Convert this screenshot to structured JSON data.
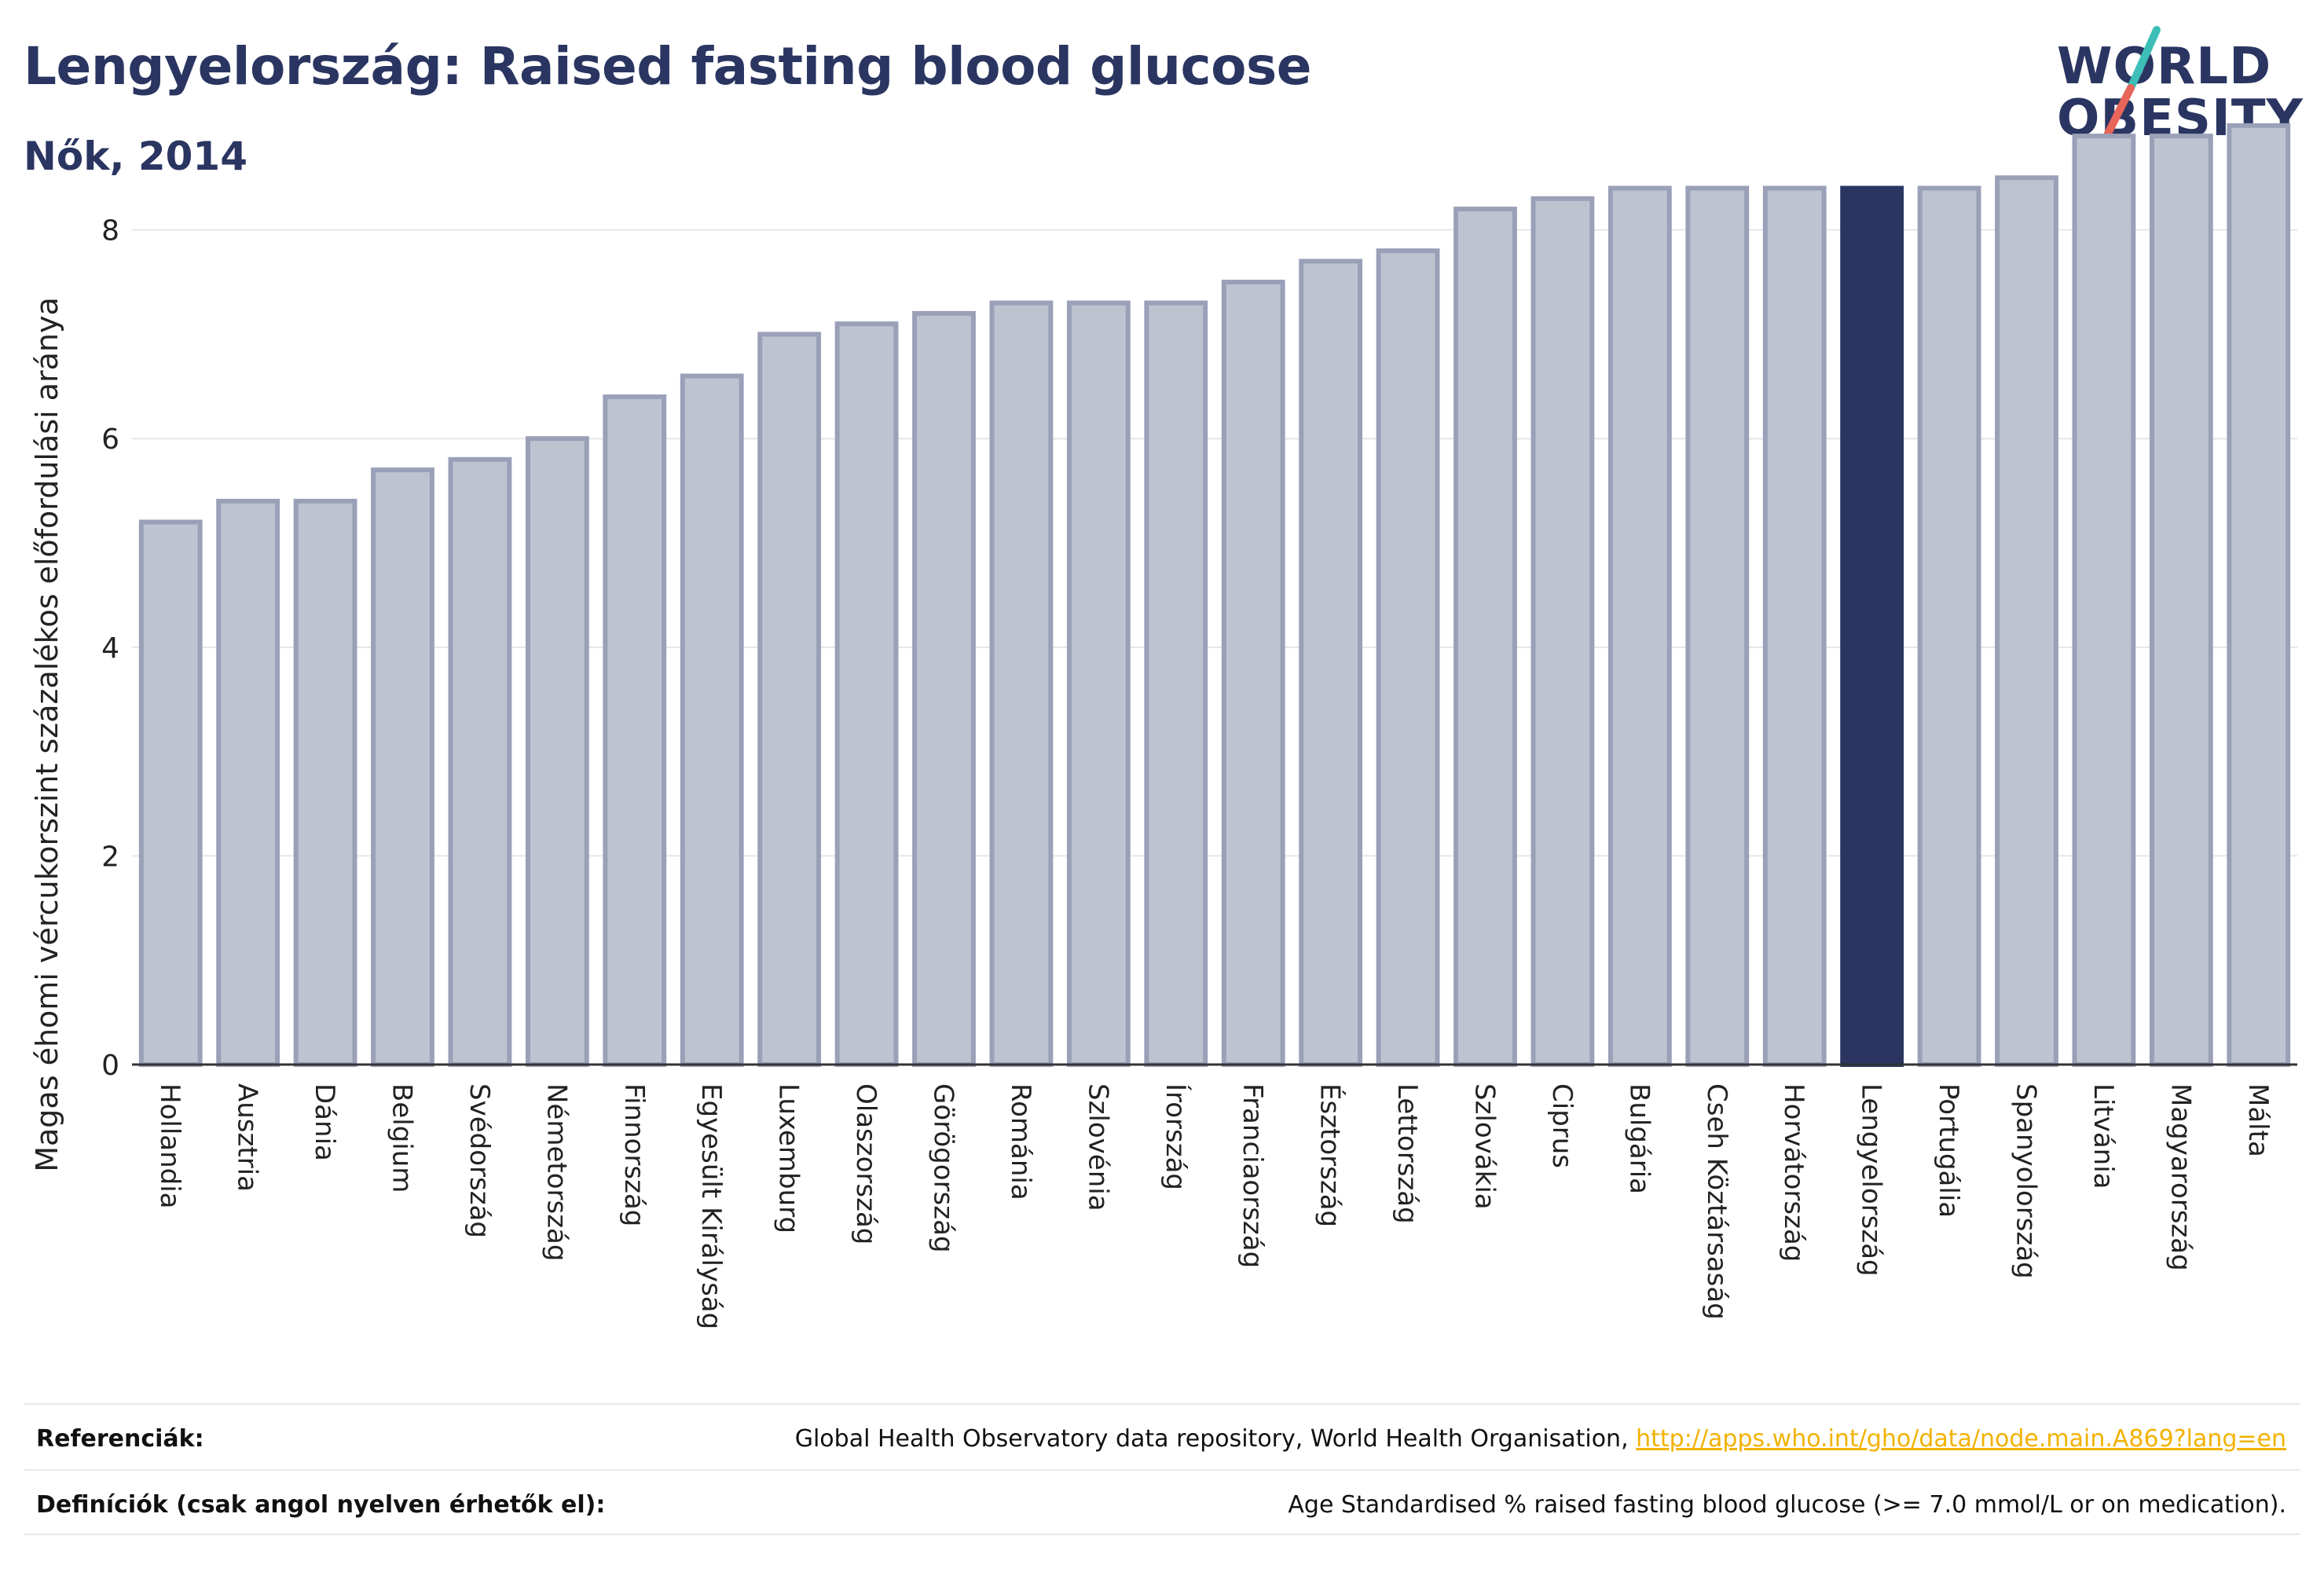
{
  "header": {
    "title": "Lengyelország: Raised fasting blood glucose",
    "subtitle": "Nők, 2014"
  },
  "logo": {
    "line1": "WORLD",
    "line2": "OBESITY",
    "colors": {
      "text": "#2a3561",
      "slash_top": "#3dbfb8",
      "slash_bottom": "#e8655a"
    }
  },
  "colors": {
    "bar_fill": "#bfc3d0",
    "bar_stroke": "#9aa0b8",
    "highlight": "#2a3561",
    "grid": "#e6e6ea",
    "axis": "#333333"
  },
  "chart_data": {
    "type": "bar",
    "title": "Lengyelország: Raised fasting blood glucose",
    "subtitle": "Nők, 2014",
    "xlabel": "",
    "ylabel": "Magas éhomi vércukorszint százalékos előfordulási aránya",
    "ylim": [
      0,
      9.3
    ],
    "yticks": [
      0,
      2,
      4,
      6,
      8
    ],
    "grid": true,
    "highlight_category": "Lengyelország",
    "categories": [
      "Hollandia",
      "Ausztria",
      "Dánia",
      "Belgium",
      "Svédország",
      "Németország",
      "Finnország",
      "Egyesült Királyság",
      "Luxemburg",
      "Olaszország",
      "Görögország",
      "Románia",
      "Szlovénia",
      "Írország",
      "Franciaország",
      "Észtország",
      "Lettország",
      "Szlovákia",
      "Ciprus",
      "Bulgária",
      "Cseh Köztársaság",
      "Horvátország",
      "Lengyelország",
      "Portugália",
      "Spanyolország",
      "Litvánia",
      "Magyarország",
      "Málta"
    ],
    "values": [
      5.2,
      5.4,
      5.4,
      5.7,
      5.8,
      6.0,
      6.4,
      6.6,
      7.0,
      7.1,
      7.2,
      7.3,
      7.3,
      7.3,
      7.5,
      7.7,
      7.8,
      8.2,
      8.3,
      8.4,
      8.4,
      8.4,
      8.4,
      8.4,
      8.5,
      8.9,
      8.9,
      9.0
    ]
  },
  "footer": {
    "references_label": "Referenciák:",
    "references_text": "Global Health Observatory data repository, World Health Organisation, ",
    "references_link": "http://apps.who.int/gho/data/node.main.A869?lang=en",
    "definitions_label": "Definíciók (csak angol nyelven érhetők el):",
    "definitions_text": "Age Standardised % raised fasting blood glucose (>= 7.0 mmol/L or on medication)."
  }
}
